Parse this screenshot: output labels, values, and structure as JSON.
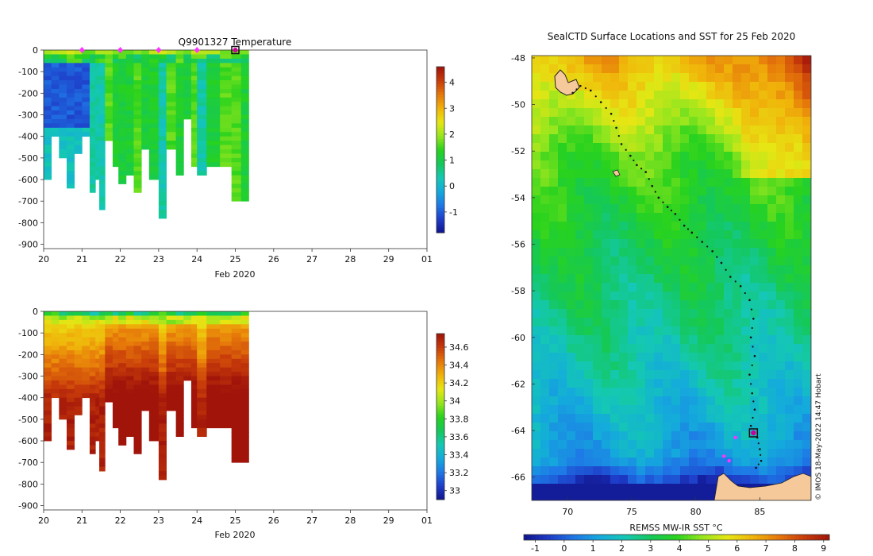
{
  "chart_data": [
    {
      "type": "heatmap",
      "name": "temperature-section",
      "title": "Q9901327  Temperature",
      "xlabel": "Feb 2020",
      "x_ticks": [
        "20",
        "21",
        "22",
        "23",
        "24",
        "25",
        "26",
        "27",
        "28",
        "29",
        "01"
      ],
      "xlim": [
        20,
        30
      ],
      "ylim": [
        -920,
        0
      ],
      "y_ticks": [
        "0",
        "-100",
        "-200",
        "-300",
        "-400",
        "-500",
        "-600",
        "-700",
        "-800",
        "-900"
      ],
      "y_tick_values": [
        0,
        -100,
        -200,
        -300,
        -400,
        -500,
        -600,
        -700,
        -800,
        -900
      ],
      "colorbar": {
        "ticks": [
          "4",
          "3",
          "2",
          "1",
          "0",
          "-1"
        ],
        "tick_values": [
          4,
          3,
          2,
          1,
          0,
          -1
        ],
        "range": [
          -1.8,
          4.6
        ],
        "colors": [
          "#10148c",
          "#1e3cc8",
          "#1e78e6",
          "#14aadc",
          "#14c8b4",
          "#14c85a",
          "#28d21e",
          "#96e61e",
          "#e6e614",
          "#f0b40a",
          "#e6780a",
          "#c83c0a",
          "#a0140a"
        ]
      },
      "profile_markers": [
        21,
        22,
        23,
        24
      ],
      "current_marker": 25,
      "profiles": [
        [
          20.0,
          600,
          1
        ],
        [
          20.2,
          400,
          1
        ],
        [
          20.4,
          500,
          1
        ],
        [
          20.6,
          640,
          1
        ],
        [
          20.8,
          480,
          1
        ],
        [
          21.0,
          400,
          1
        ],
        [
          21.2,
          650,
          2
        ],
        [
          21.35,
          590,
          2
        ],
        [
          21.45,
          740,
          2
        ],
        [
          21.6,
          420,
          4
        ],
        [
          21.8,
          540,
          3
        ],
        [
          21.95,
          610,
          3
        ],
        [
          22.15,
          580,
          3
        ],
        [
          22.35,
          660,
          4
        ],
        [
          22.55,
          450,
          3
        ],
        [
          22.75,
          600,
          3
        ],
        [
          23.0,
          780,
          2
        ],
        [
          23.2,
          460,
          4
        ],
        [
          23.45,
          580,
          3
        ],
        [
          23.65,
          320,
          3
        ],
        [
          23.85,
          540,
          4
        ],
        [
          24.0,
          570,
          2
        ],
        [
          24.25,
          530,
          3
        ],
        [
          24.6,
          530,
          4
        ],
        [
          24.9,
          700,
          4
        ],
        [
          25.15,
          700,
          3
        ]
      ]
    },
    {
      "type": "heatmap",
      "name": "salinity-section",
      "title": "",
      "xlabel": "Feb 2020",
      "x_ticks": [
        "20",
        "21",
        "22",
        "23",
        "24",
        "25",
        "26",
        "27",
        "28",
        "29",
        "01"
      ],
      "xlim": [
        20,
        30
      ],
      "ylim": [
        -920,
        0
      ],
      "y_ticks": [
        "0",
        "-100",
        "-200",
        "-300",
        "-400",
        "-500",
        "-600",
        "-700",
        "-800",
        "-900"
      ],
      "y_tick_values": [
        0,
        -100,
        -200,
        -300,
        -400,
        -500,
        -600,
        -700,
        -800,
        -900
      ],
      "colorbar": {
        "ticks": [
          "34.6",
          "34.4",
          "34.2",
          "34",
          "33.8",
          "33.6",
          "33.4",
          "33.2",
          "33"
        ],
        "tick_values": [
          34.6,
          34.4,
          34.2,
          34.0,
          33.8,
          33.6,
          33.4,
          33.2,
          33.0
        ],
        "range": [
          32.9,
          34.75
        ],
        "colors": [
          "#10148c",
          "#1e3cc8",
          "#1e78e6",
          "#14aadc",
          "#14c8b4",
          "#14c85a",
          "#28d21e",
          "#96e61e",
          "#e6e614",
          "#f0b40a",
          "#e6780a",
          "#c83c0a",
          "#a0140a"
        ]
      },
      "profiles": [
        [
          20.0,
          600,
          1
        ],
        [
          20.2,
          400,
          1
        ],
        [
          20.4,
          500,
          1
        ],
        [
          20.6,
          640,
          1
        ],
        [
          20.8,
          480,
          1
        ],
        [
          21.0,
          400,
          1
        ],
        [
          21.2,
          650,
          2
        ],
        [
          21.35,
          590,
          2
        ],
        [
          21.45,
          740,
          2
        ],
        [
          21.6,
          420,
          4
        ],
        [
          21.8,
          540,
          3
        ],
        [
          21.95,
          610,
          3
        ],
        [
          22.15,
          580,
          3
        ],
        [
          22.35,
          660,
          4
        ],
        [
          22.55,
          450,
          3
        ],
        [
          22.75,
          600,
          3
        ],
        [
          23.0,
          780,
          2
        ],
        [
          23.2,
          460,
          4
        ],
        [
          23.45,
          580,
          3
        ],
        [
          23.65,
          320,
          3
        ],
        [
          23.85,
          540,
          4
        ],
        [
          24.0,
          570,
          2
        ],
        [
          24.25,
          530,
          3
        ],
        [
          24.6,
          530,
          4
        ],
        [
          24.9,
          700,
          4
        ],
        [
          25.15,
          700,
          3
        ]
      ]
    },
    {
      "type": "heatmap",
      "name": "sst-map",
      "title": "SealCTD Surface Locations and SST for 25 Feb 2020",
      "xlabel": "",
      "x_ticks": [
        "70",
        "75",
        "80",
        "85"
      ],
      "x_tick_values": [
        70,
        75,
        80,
        85
      ],
      "xlim": [
        67.2,
        89.0
      ],
      "y_ticks": [
        "-48",
        "-50",
        "-52",
        "-54",
        "-56",
        "-58",
        "-60",
        "-62",
        "-64",
        "-66"
      ],
      "y_tick_values": [
        -48,
        -50,
        -52,
        -54,
        -56,
        -58,
        -60,
        -62,
        -64,
        -66
      ],
      "ylim": [
        -67.0,
        -47.9
      ],
      "colorbar": {
        "label": "REMSS MW-IR SST °C",
        "ticks": [
          "-1",
          "0",
          "1",
          "2",
          "3",
          "4",
          "5",
          "6",
          "7",
          "8",
          "9"
        ],
        "tick_values": [
          -1,
          0,
          1,
          2,
          3,
          4,
          5,
          6,
          7,
          8,
          9
        ],
        "range": [
          -1.4,
          9.2
        ],
        "colors": [
          "#10148c",
          "#1e3cc8",
          "#1e78e6",
          "#14aadc",
          "#14c8b4",
          "#14c85a",
          "#28d21e",
          "#96e61e",
          "#e6e614",
          "#f0b40a",
          "#e6780a",
          "#c83c0a",
          "#a0140a"
        ]
      },
      "sst_gradient": [
        [
          -48,
          6.5
        ],
        [
          -52,
          4.2
        ],
        [
          -56,
          3.2
        ],
        [
          -60,
          2.4
        ],
        [
          -63,
          1.6
        ],
        [
          -65,
          1.0
        ],
        [
          -66.3,
          -1.0
        ]
      ],
      "track": [
        [
          70.4,
          -49.5
        ],
        [
          71.0,
          -49.2
        ],
        [
          71.8,
          -49.4
        ],
        [
          72.6,
          -49.9
        ],
        [
          73.4,
          -50.4
        ],
        [
          73.8,
          -51.0
        ],
        [
          74.2,
          -51.7
        ],
        [
          74.9,
          -52.2
        ],
        [
          75.4,
          -52.6
        ],
        [
          76.1,
          -52.9
        ],
        [
          76.6,
          -53.5
        ],
        [
          77.1,
          -54.0
        ],
        [
          77.8,
          -54.4
        ],
        [
          78.4,
          -54.7
        ],
        [
          79.1,
          -55.2
        ],
        [
          79.7,
          -55.5
        ],
        [
          80.5,
          -55.9
        ],
        [
          81.3,
          -56.3
        ],
        [
          82.0,
          -56.8
        ],
        [
          82.7,
          -57.4
        ],
        [
          83.5,
          -57.8
        ],
        [
          84.2,
          -58.4
        ],
        [
          84.5,
          -59.2
        ],
        [
          84.3,
          -60.0
        ],
        [
          84.6,
          -60.8
        ],
        [
          84.2,
          -61.6
        ],
        [
          84.4,
          -62.4
        ],
        [
          84.6,
          -63.1
        ],
        [
          84.3,
          -63.8
        ],
        [
          84.8,
          -64.3
        ],
        [
          85.0,
          -64.8
        ],
        [
          85.1,
          -65.3
        ],
        [
          84.7,
          -65.6
        ]
      ],
      "magenta_points": [
        [
          82.2,
          -65.1
        ],
        [
          82.6,
          -65.3
        ],
        [
          83.1,
          -64.3
        ]
      ],
      "current_position": [
        84.5,
        -64.1
      ]
    }
  ],
  "credit": "© IMOS 18-May-2022 14:47 Hobart"
}
